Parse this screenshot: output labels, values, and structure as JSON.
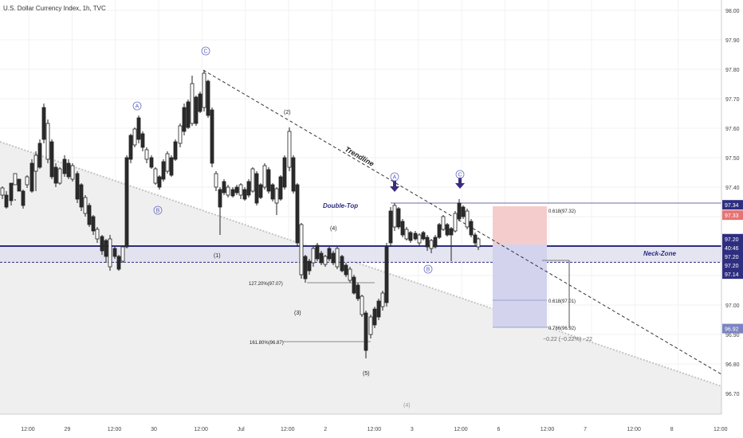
{
  "header": {
    "symbol_title": "U.S. Dollar Currency Index, 1h, TVC"
  },
  "chart_data": {
    "type": "candlestick",
    "title": "U.S. Dollar Currency Index, 1h, TVC",
    "y_ticks": [
      "98.00",
      "97.90",
      "97.80",
      "97.70",
      "97.60",
      "97.50",
      "97.40",
      "97.30",
      "97.20",
      "97.10",
      "97.00",
      "96.90",
      "96.80",
      "96.70"
    ],
    "ylim": [
      96.66,
      98.02
    ],
    "x_ticks": [
      {
        "label": "12:00",
        "x": 0.04
      },
      {
        "label": "29",
        "x": 0.1
      },
      {
        "label": "12:00",
        "x": 0.16
      },
      {
        "label": "30",
        "x": 0.22
      },
      {
        "label": "12:00",
        "x": 0.28
      },
      {
        "label": "Jul",
        "x": 0.34
      },
      {
        "label": "12:00",
        "x": 0.4
      },
      {
        "label": "2",
        "x": 0.46
      },
      {
        "label": "12:00",
        "x": 0.52
      },
      {
        "label": "3",
        "x": 0.58
      },
      {
        "label": "12:00",
        "x": 0.64
      },
      {
        "label": "6",
        "x": 0.7
      },
      {
        "label": "12:00",
        "x": 0.76
      },
      {
        "label": "7",
        "x": 0.82
      },
      {
        "label": "12:00",
        "x": 0.88
      },
      {
        "label": "8",
        "x": 0.94
      },
      {
        "label": "12:00",
        "x": 1.0
      }
    ],
    "price_labels": [
      {
        "text": "97.34",
        "price": 97.34,
        "color": "#2e2e80"
      },
      {
        "text": "97.33",
        "price": 97.305,
        "color": "#e57373"
      },
      {
        "text": "97.20",
        "price": 97.225,
        "color": "#2e2e80"
      },
      {
        "text": "40:46",
        "price": 97.195,
        "color": "#2e2e80"
      },
      {
        "text": "97.20",
        "price": 97.165,
        "color": "#2e2e80"
      },
      {
        "text": "97.20",
        "price": 97.135,
        "color": "#2e2e80"
      },
      {
        "text": "97.14",
        "price": 97.105,
        "color": "#2e2e80"
      },
      {
        "text": "96.92",
        "price": 96.92,
        "color": "#7b83c2"
      }
    ],
    "annotations": {
      "trendline": "Trendline",
      "double_top": "Double-Top",
      "neck_zone": "Neck-Zone",
      "fib_0618_upper": "0.618(97.32)",
      "fib_0618_lower": "0.618(97.01)",
      "fib_0786": "0.786(96.92)",
      "measure": "−0.22 (−0.22%) −22",
      "ext_127": "127.20%(97.07)",
      "ext_161": "161.80%(96.87)",
      "wave_2": "(2)",
      "wave_1": "(1)",
      "wave_3": "(3)",
      "wave_4": "(4)",
      "wave_5": "(5)",
      "wave_4b": "(4)",
      "circle_a1": "A",
      "circle_b1": "B",
      "circle_c1": "C",
      "circle_a2": "A",
      "circle_b2": "B",
      "circle_c2": "C"
    },
    "colors": {
      "up": "#ffffff",
      "down": "#2b2b2b",
      "zone": "#2e2e80",
      "zone_fill": "#dfe0ee",
      "short_loss": "#f5cccc",
      "short_profit": "#d3d3ee",
      "trend_shade": "#efefef",
      "arrow": "#3a2c7a"
    }
  }
}
